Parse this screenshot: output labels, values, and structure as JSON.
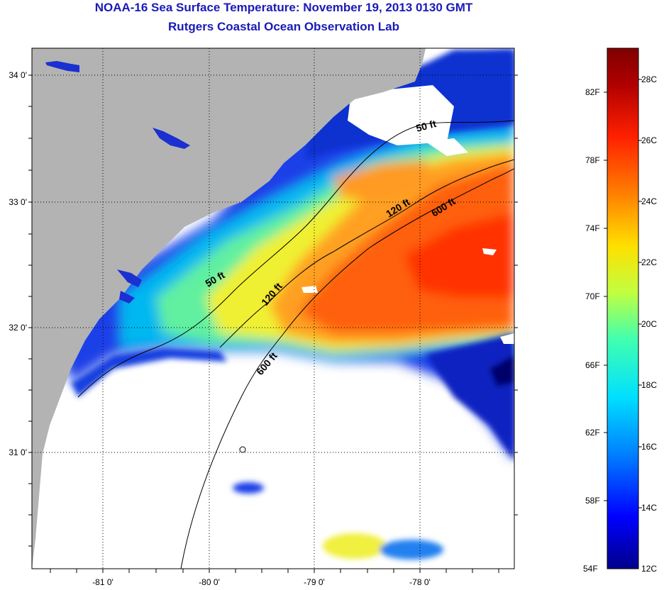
{
  "header": {
    "title": "NOAA-16 Sea Surface Temperature:  November 19, 2013 0130 GMT",
    "subtitle": "Rutgers Coastal Ocean Observation Lab"
  },
  "map": {
    "lat_labels": [
      "34 0'",
      "33 0'",
      "32 0'",
      "31 0'"
    ],
    "lon_labels": [
      "-81 0'",
      "-80 0'",
      "-79 0'",
      "-78 0'"
    ],
    "isobaths": [
      {
        "label": "50 ft",
        "instances": 2
      },
      {
        "label": "120 ft",
        "instances": 2
      },
      {
        "label": "600 ft",
        "instances": 2
      }
    ],
    "isobath_labels": [
      "50 ft",
      "50 ft",
      "120 ft",
      "120 ft",
      "600 ft",
      "600 ft"
    ],
    "land_color": "#b3b3b3",
    "cloud_color": "#ffffff"
  },
  "colorbar": {
    "fahrenheit_labels": [
      "82F",
      "78F",
      "74F",
      "70F",
      "66F",
      "62F",
      "58F",
      "54F"
    ],
    "celsius_labels": [
      "28C",
      "26C",
      "24C",
      "22C",
      "20C",
      "18C",
      "16C",
      "14C",
      "12C"
    ],
    "colors": [
      "#00008b",
      "#0000ff",
      "#0080ff",
      "#00e0ff",
      "#40ffb0",
      "#c0ff40",
      "#ffe000",
      "#ff8000",
      "#ff2000",
      "#b00000",
      "#800000"
    ]
  }
}
